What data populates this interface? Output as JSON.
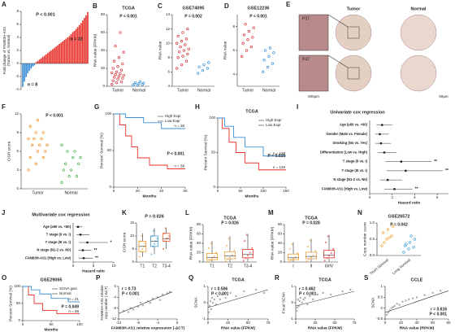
{
  "chart_data": [
    {
      "type": "bar",
      "panel": "A",
      "ylabel": [
        "Fold change of FAM83H-AS1",
        "(Tumor vs. Normal)"
      ],
      "values": [
        -3.6,
        -2.8,
        -2.1,
        -1.5,
        -1.1,
        -0.8,
        -0.5,
        -0.3,
        0.2,
        0.4,
        0.6,
        0.8,
        1.0,
        1.2,
        1.4,
        1.6,
        1.8,
        2.0,
        2.2,
        2.4,
        2.6,
        2.8,
        3.0,
        3.2,
        3.4,
        3.6,
        3.8,
        4.0,
        4.2,
        4.5,
        4.8,
        5.0,
        5.3,
        5.6,
        5.9,
        6.2,
        6.6,
        7.0,
        7.4,
        7.9
      ],
      "color_positive": "#e8322b",
      "color_negative": "#3a8fd8",
      "ylim": [
        -4,
        8
      ],
      "yticks": [
        -4,
        -2,
        0,
        2,
        4,
        6,
        8
      ],
      "annotations": [
        "P < 0.001",
        "n = 32",
        "n = 8"
      ]
    },
    {
      "type": "dot",
      "panel": "B",
      "title": "TCGA",
      "ylabel": "RNA value (FPKM)",
      "categories": [
        "Tumor",
        "Normal"
      ],
      "colors": [
        "#d9343a",
        "#3a8fd8"
      ],
      "values": [
        [
          2,
          4,
          5,
          6,
          8,
          9,
          10,
          11,
          12,
          13,
          14,
          15,
          16,
          18,
          20,
          22,
          25,
          28,
          32,
          38,
          45,
          60
        ],
        [
          1,
          1.5,
          2,
          2.5,
          3,
          3.5,
          4,
          5
        ]
      ],
      "ylim": [
        0,
        80
      ],
      "yticks": [
        0,
        20,
        40,
        60,
        80
      ],
      "pvalue": "P < 0.001"
    },
    {
      "type": "dot",
      "panel": "C",
      "title": "GSE74095",
      "ylabel": "RNA value",
      "categories": [
        "Tumor",
        "Normal"
      ],
      "colors": [
        "#d9343a",
        "#3a8fd8"
      ],
      "values": [
        [
          6.5,
          7,
          7.5,
          8,
          8.2,
          8.5,
          8.8,
          9,
          9.2,
          9.5,
          9.8,
          10,
          10.3,
          10.6,
          11,
          11.5,
          12
        ],
        [
          5.8,
          6.2,
          6.5,
          6.7,
          7,
          7.3
        ]
      ],
      "ylim": [
        4,
        14
      ],
      "yticks": [
        4,
        6,
        8,
        10,
        12,
        14
      ],
      "pvalue": "P = 0.002"
    },
    {
      "type": "dot",
      "panel": "D",
      "title": "GSE12236",
      "ylabel": "RNA value",
      "categories": [
        "Tumor",
        "Normal"
      ],
      "colors": [
        "#d9343a",
        "#3a8fd8"
      ],
      "values": [
        [
          5.5,
          6,
          6.3,
          6.6,
          6.9,
          7.1,
          7.3,
          7.6,
          7.9,
          8.2
        ],
        [
          4.2,
          4.6,
          4.9,
          5.2,
          5.5,
          5.8,
          6,
          6.2
        ]
      ],
      "ylim": [
        3,
        9
      ],
      "yticks": [
        4,
        6,
        8
      ],
      "pvalue": "P < 0.001"
    },
    {
      "type": "image",
      "panel": "E",
      "columns": [
        "Tumor",
        "Normal"
      ],
      "labels": [
        "P37",
        "P47"
      ],
      "scales": [
        "500μm",
        "50μm"
      ]
    },
    {
      "type": "dot",
      "panel": "F",
      "ylabel": "CISH score",
      "categories": [
        "Tumor",
        "Normal"
      ],
      "colors": [
        "#f08a24",
        "#4caf50"
      ],
      "values": [
        [
          3,
          4,
          5,
          5,
          6,
          6,
          7,
          7,
          7,
          8,
          8,
          8,
          9,
          9,
          10,
          11
        ],
        [
          1,
          2,
          2,
          3,
          3,
          4,
          4,
          5,
          5,
          6,
          6,
          7
        ]
      ],
      "ylim": [
        0,
        12
      ],
      "yticks": [
        0,
        3,
        6,
        9,
        12
      ],
      "pvalue": "P < 0.001"
    },
    {
      "type": "km",
      "panel": "G",
      "ylabel": "Percent Survival (%)",
      "xlabel": "Months",
      "series": [
        {
          "name": "High Expr",
          "color": "#e8322b",
          "n_label": "n = 38",
          "x": [
            0,
            5,
            5,
            10,
            10,
            15,
            15,
            20,
            20,
            30,
            30,
            45,
            45,
            60
          ],
          "values": [
            100,
            100,
            85,
            85,
            70,
            70,
            55,
            55,
            40,
            40,
            30,
            30,
            25,
            25
          ]
        },
        {
          "name": "Low Expr",
          "color": "#3a8fd8",
          "n_label": "n = 38",
          "x": [
            0,
            10,
            10,
            25,
            25,
            40,
            40,
            60
          ],
          "values": [
            100,
            100,
            95,
            95,
            88,
            88,
            80,
            80
          ]
        }
      ],
      "xlim": [
        0,
        60
      ],
      "xticks": [
        0,
        20,
        40,
        60
      ],
      "ylim": [
        0,
        100
      ],
      "yticks": [
        0,
        50,
        100
      ],
      "pvalue": "P < 0.001"
    },
    {
      "type": "km",
      "panel": "H",
      "title": "TCGA",
      "ylabel": "Percent Survival (%)",
      "xlabel": "Months",
      "series": [
        {
          "name": "High Expr",
          "color": "#e8322b",
          "n_label": "n = 126",
          "x": [
            0,
            10,
            10,
            25,
            25,
            40,
            40,
            60,
            60,
            90,
            90,
            150
          ],
          "values": [
            100,
            100,
            85,
            85,
            65,
            65,
            50,
            50,
            35,
            35,
            25,
            25
          ]
        },
        {
          "name": "Low Expr",
          "color": "#3a8fd8",
          "n_label": "n = 128",
          "x": [
            0,
            15,
            15,
            35,
            35,
            60,
            60,
            100,
            100,
            150
          ],
          "values": [
            100,
            100,
            88,
            88,
            72,
            72,
            58,
            58,
            45,
            45
          ]
        }
      ],
      "xlim": [
        0,
        150
      ],
      "xticks": [
        0,
        50,
        100,
        150
      ],
      "ylim": [
        0,
        100
      ],
      "yticks": [
        0,
        50,
        100
      ],
      "pvalue": "P = 0.039"
    },
    {
      "type": "forest",
      "panel": "I",
      "title": "Univariate cox regression",
      "xlabel": "Hazard ratio",
      "categories": [
        "Age (≥60 vs. <60)",
        "Gender (Male vs. Female)",
        "Smoking (No vs. Yes)",
        "Differentiation (Low vs. High)",
        "T stage (II vs. I)",
        "T stage (III vs. I)",
        "N stage (N1-2 vs. N0)",
        "FAM83H-AS1 (High vs. Low)"
      ],
      "hr": [
        1.1,
        0.9,
        1.0,
        1.3,
        2.8,
        3.2,
        1.6,
        2.2
      ],
      "lo": [
        0.6,
        0.5,
        0.5,
        0.7,
        1.4,
        1.5,
        0.9,
        1.3
      ],
      "hi": [
        2,
        1.7,
        1.9,
        2.4,
        5.5,
        6.5,
        2.9,
        3.8
      ],
      "sig": [
        null,
        null,
        null,
        null,
        "**",
        "**",
        null,
        "**"
      ],
      "xlim": [
        0,
        7
      ],
      "xticks": [
        0,
        2,
        4,
        6
      ]
    },
    {
      "type": "forest",
      "panel": "J",
      "title": "Multivariate cox regression",
      "xlabel": "Hazard ratio",
      "categories": [
        "Age (≥60 vs. <60)",
        "T stage (II vs. I)",
        "T stage (III vs. I)",
        "N stage (N1-2 vs. N0)",
        "FAM83H-AS1 (High vs. Low)"
      ],
      "hr": [
        1.2,
        1.8,
        3.5,
        2.4,
        2.6
      ],
      "lo": [
        0.6,
        0.8,
        1.4,
        1.3,
        1.4
      ],
      "hi": [
        2.3,
        4.0,
        8.5,
        4.5,
        4.8
      ],
      "sig": [
        null,
        null,
        "*",
        "**",
        "**"
      ],
      "xlim": [
        0,
        10
      ],
      "xticks": [
        0,
        5,
        10
      ]
    },
    {
      "type": "box",
      "panel": "K",
      "title": "P = 0.026",
      "ylabel": "CISH score",
      "categories": [
        "T1",
        "T2",
        "T3-4"
      ],
      "colors": [
        "#f0a030",
        "#3a9fd8",
        "#e8552b"
      ],
      "boxes": [
        {
          "min": 2,
          "q1": 4,
          "median": 6,
          "q3": 8,
          "max": 11
        },
        {
          "min": 3,
          "q1": 6,
          "median": 8,
          "q3": 10,
          "max": 13
        },
        {
          "min": 5,
          "q1": 8,
          "median": 9,
          "q3": 11,
          "max": 13
        }
      ],
      "points": [
        [
          2,
          4,
          5,
          6,
          7,
          8,
          10
        ],
        [
          3,
          6,
          7,
          8,
          9,
          10,
          12
        ],
        [
          5,
          8,
          9,
          9,
          10,
          11,
          13
        ]
      ],
      "ylim": [
        0,
        15
      ],
      "yticks": [
        0,
        5,
        10,
        15
      ]
    },
    {
      "type": "box",
      "panel": "L",
      "title": "TCGA",
      "subtitle": "P = 0.026",
      "ylabel": "RNA value (FPKM)",
      "categories": [
        "T1",
        "T2",
        "T3-4"
      ],
      "colors": [
        "#f0a030",
        "#e8a040",
        "#e8322b"
      ],
      "boxes": [
        {
          "min": 0,
          "q1": 5,
          "median": 10,
          "q3": 18,
          "max": 45
        },
        {
          "min": 0,
          "q1": 7,
          "median": 13,
          "q3": 22,
          "max": 55
        },
        {
          "min": 1,
          "q1": 9,
          "median": 16,
          "q3": 27,
          "max": 60
        }
      ],
      "points": [
        [
          1,
          4,
          8,
          12,
          20,
          30,
          40
        ],
        [
          2,
          6,
          10,
          15,
          25,
          35,
          50
        ],
        [
          3,
          8,
          14,
          20,
          30,
          45,
          58
        ]
      ],
      "ylim": [
        0,
        80
      ],
      "yticks": [
        0,
        20,
        40,
        60,
        80
      ]
    },
    {
      "type": "box",
      "panel": "M",
      "title": "TCGA",
      "subtitle": "P = 0.028",
      "ylabel": "RNA value (FPKM)",
      "categories": [
        "I",
        "II",
        "III/IV"
      ],
      "colors": [
        "#f0a030",
        "#e8a040",
        "#e8322b"
      ],
      "boxes": [
        {
          "min": 0,
          "q1": 5,
          "median": 9,
          "q3": 17,
          "max": 42
        },
        {
          "min": 0,
          "q1": 7,
          "median": 12,
          "q3": 21,
          "max": 50
        },
        {
          "min": 1,
          "q1": 9,
          "median": 15,
          "q3": 25,
          "max": 58
        }
      ],
      "points": [
        [
          1,
          4,
          7,
          11,
          19,
          28,
          38
        ],
        [
          2,
          6,
          10,
          14,
          24,
          33,
          46
        ],
        [
          3,
          8,
          13,
          19,
          28,
          42,
          55
        ]
      ],
      "ylim": [
        0,
        80
      ],
      "yticks": [
        0,
        20,
        40,
        60,
        80
      ]
    },
    {
      "type": "dot",
      "panel": "N",
      "title": "GSE26572",
      "ylabel": "Copy number score",
      "categories": [
        "Short Survival",
        "Long Survival"
      ],
      "colors": [
        "#f0a030",
        "#3a9fd8"
      ],
      "values": [
        [
          0.3,
          0.5,
          0.6,
          0.7,
          0.8,
          0.9,
          0.4,
          0.55
        ],
        [
          0.1,
          0.2,
          0.25,
          0.3,
          0.4,
          0.5,
          0.35,
          0.6
        ]
      ],
      "ylim": [
        0,
        1
      ],
      "yticks": [
        {
          "value": 0,
          "label": "0.0"
        },
        {
          "value": 0.5,
          "label": "0.5"
        },
        {
          "value": 1,
          "label": "1.0"
        }
      ],
      "pvalue": "P = 0.042"
    },
    {
      "type": "km",
      "panel": "O",
      "title": "GSE29065",
      "ylabel": "Percent Survival (%)",
      "xlabel": "Months",
      "series": [
        {
          "name": "SCNA gain",
          "color": "#e8322b",
          "n_label": "n = 58",
          "x": [
            0,
            10,
            10,
            20,
            20,
            35,
            35,
            60,
            60,
            100
          ],
          "values": [
            100,
            100,
            75,
            75,
            50,
            50,
            30,
            30,
            20,
            20
          ]
        },
        {
          "name": "Normal",
          "color": "#3a8fd8",
          "n_label": "n = 21",
          "x": [
            0,
            15,
            15,
            30,
            30,
            50,
            50,
            80,
            80,
            100
          ],
          "values": [
            100,
            100,
            90,
            90,
            78,
            78,
            65,
            65,
            55,
            55
          ]
        }
      ],
      "xlim": [
        0,
        100
      ],
      "xticks": [
        0,
        50,
        100
      ],
      "ylim": [
        0,
        100
      ],
      "yticks": [
        0,
        50,
        100
      ],
      "pvalue": "P = 0.049"
    },
    {
      "type": "scatter",
      "panel": "P",
      "ylabel": [
        "FAM83H-AS1 relative",
        "copy number (-ΔCT)"
      ],
      "xlabel": "FAM83H-AS1 relative expression (-ΔCT)",
      "r_label": "r = 0.73",
      "pvalue": "P < 0.001",
      "x": [
        -11,
        -10,
        -9.5,
        -9,
        -8,
        -7.5,
        -7,
        -6,
        -5.5,
        -5,
        -4,
        -3.5,
        -3,
        -2,
        -1.5
      ],
      "values": [
        -9,
        -9.5,
        -8,
        -8.5,
        -7.5,
        -6,
        -7,
        -5.5,
        -6,
        -4.5,
        -4,
        -5,
        -3,
        -2.5,
        -2
      ],
      "fit": {
        "x": [
          -12,
          -1
        ],
        "y": [
          -10,
          -2
        ]
      },
      "xlim": [
        -12,
        0
      ],
      "xticks": [
        -12,
        -8,
        -4,
        0
      ],
      "ylim": [
        -12,
        0
      ],
      "yticks": [
        -12,
        -8,
        -4,
        0
      ],
      "color": "#999999",
      "fit_color": "#e8322b"
    },
    {
      "type": "scatter",
      "panel": "Q",
      "title": "TCGA",
      "ylabel": "SCNA",
      "xlabel": "RNA value (FPKM)",
      "r_label": "r = 0.506",
      "pvalue": "P < 0.001",
      "x": [
        1,
        2,
        3,
        4,
        5,
        6,
        8,
        10,
        12,
        15,
        18,
        22,
        28,
        35,
        45,
        60,
        70
      ],
      "values": [
        -0.6,
        -0.2,
        0.1,
        -0.4,
        0.3,
        0,
        0.2,
        -0.1,
        0.4,
        0.2,
        0.5,
        0.3,
        0.6,
        0.4,
        0.7,
        0.8,
        0.6
      ],
      "fit": {
        "x": [
          0,
          75
        ],
        "y": [
          -0.3,
          0.8
        ]
      },
      "xlim": [
        0,
        75
      ],
      "xticks": [
        0,
        25,
        50,
        75
      ],
      "ylim": [
        -1,
        1
      ],
      "yticks": [
        -1,
        0,
        1
      ],
      "color": "#999999",
      "fit_color": "#e8322b"
    },
    {
      "type": "scatter",
      "panel": "R",
      "title": "TCGA",
      "ylabel": "Focal SCNA",
      "xlabel": "RNA value (FPKM)",
      "r_label": "r = 0.462",
      "pvalue": "P < 0.001",
      "x": [
        1,
        2,
        3,
        4,
        5,
        6,
        8,
        10,
        12,
        15,
        18,
        22,
        28,
        35,
        45,
        60,
        70
      ],
      "values": [
        -0.5,
        -0.3,
        0.2,
        -0.2,
        0.1,
        0.3,
        0,
        0.2,
        0.3,
        -0.1,
        0.4,
        0.2,
        0.5,
        0.6,
        0.5,
        0.7,
        0.8
      ],
      "fit": {
        "x": [
          0,
          75
        ],
        "y": [
          -0.2,
          0.7
        ]
      },
      "xlim": [
        0,
        75
      ],
      "xticks": [
        0,
        25,
        50,
        75
      ],
      "ylim": [
        -1,
        1
      ],
      "yticks": [
        -1,
        0,
        1
      ],
      "color": "#999999",
      "fit_color": "#e8322b"
    },
    {
      "type": "scatter",
      "panel": "S",
      "title": "CCLE",
      "ylabel": "SCNA",
      "xlabel": "RNA value (RPKM)",
      "r_label": "r = 0.616",
      "pvalue": "P < 0.001",
      "x": [
        2,
        4,
        6,
        8,
        10,
        12,
        15,
        18,
        22,
        26,
        30,
        35,
        40,
        50,
        60,
        70
      ],
      "values": [
        -0.3,
        -0.2,
        -0.1,
        0,
        0.05,
        0.1,
        0.2,
        0.15,
        0.3,
        0.35,
        0.4,
        0.45,
        0.5,
        0.6,
        0.7,
        0.8
      ],
      "fit": {
        "x": [
          0,
          80
        ],
        "y": [
          -0.2,
          0.8
        ]
      },
      "xlim": [
        0,
        80
      ],
      "xticks": [
        0,
        20,
        40,
        60,
        80
      ],
      "ylim": [
        -0.5,
        1
      ],
      "yticks": [
        -0.5,
        0,
        0.5,
        1
      ],
      "color": "#999999",
      "fit_color": "#3a4fa8"
    }
  ]
}
